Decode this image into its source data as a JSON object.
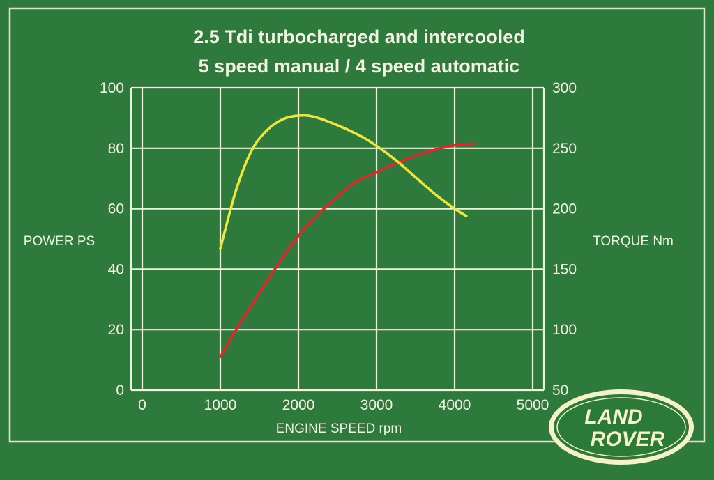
{
  "colors": {
    "background": "#2e7a3c",
    "grid": "#f4f1e2",
    "frame": "#d9e6c8",
    "power": "#e2262a",
    "torque": "#f0e53a",
    "logo_fill": "#2b7a39",
    "logo_text": "#f6f2c8"
  },
  "logo": {
    "line1": "LAND",
    "line2": "ROVER"
  },
  "chart_data": {
    "type": "line",
    "title": "2.5 Tdi turbocharged and intercooled",
    "subtitle": "5 speed manual / 4 speed automatic",
    "xlabel": "ENGINE SPEED rpm",
    "ylabel": "POWER PS",
    "y2label": "TORQUE Nm",
    "xlim": [
      0,
      5000
    ],
    "ylim": [
      0,
      100
    ],
    "y2lim": [
      50,
      300
    ],
    "grid": true,
    "x_ticks": [
      0,
      1000,
      2000,
      3000,
      4000,
      5000
    ],
    "y_ticks": [
      0,
      20,
      40,
      60,
      80,
      100
    ],
    "y2_ticks": [
      50,
      100,
      150,
      200,
      250,
      300
    ],
    "series": [
      {
        "axis": "left",
        "color": "#e2262a",
        "points": [
          [
            1000,
            11
          ],
          [
            1250,
            22
          ],
          [
            1500,
            32
          ],
          [
            1750,
            42
          ],
          [
            2000,
            51
          ],
          [
            2250,
            58
          ],
          [
            2500,
            64
          ],
          [
            2750,
            69
          ],
          [
            3000,
            72
          ],
          [
            3250,
            75
          ],
          [
            3500,
            77.5
          ],
          [
            3750,
            79.5
          ],
          [
            4000,
            81
          ],
          [
            4250,
            81.5
          ]
        ]
      },
      {
        "axis": "right",
        "color": "#f0e53a",
        "points": [
          [
            1000,
            167
          ],
          [
            1200,
            215
          ],
          [
            1400,
            248
          ],
          [
            1600,
            265
          ],
          [
            1800,
            274
          ],
          [
            2000,
            277
          ],
          [
            2200,
            276
          ],
          [
            2500,
            269
          ],
          [
            2800,
            260
          ],
          [
            3000,
            252
          ],
          [
            3250,
            240
          ],
          [
            3500,
            226
          ],
          [
            3750,
            212
          ],
          [
            4000,
            200
          ],
          [
            4150,
            194
          ]
        ]
      }
    ]
  }
}
